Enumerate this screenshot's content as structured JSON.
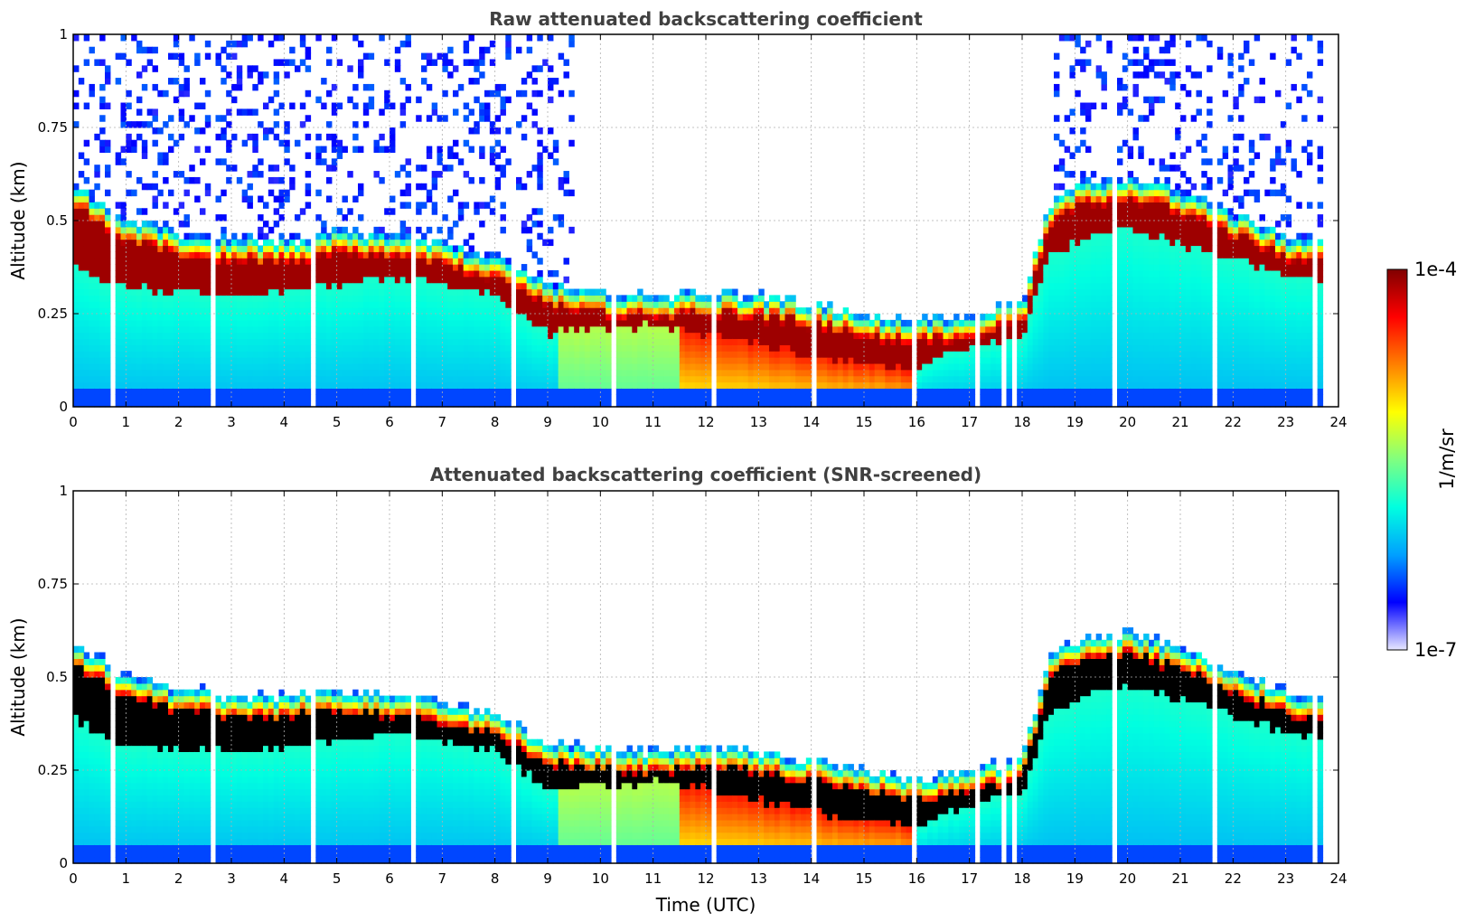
{
  "chart_data": [
    {
      "type": "heatmap",
      "title": "Raw attenuated backscattering coefficient",
      "xlabel": "",
      "ylabel": "Altitude (km)",
      "xlim": [
        0,
        24
      ],
      "ylim": [
        0,
        1
      ],
      "x_ticks": [
        "0",
        "1",
        "2",
        "3",
        "4",
        "5",
        "6",
        "7",
        "8",
        "9",
        "10",
        "11",
        "12",
        "13",
        "14",
        "15",
        "16",
        "17",
        "18",
        "19",
        "20",
        "21",
        "22",
        "23",
        "24"
      ],
      "y_ticks": [
        "0",
        "0.25",
        "0.5",
        "0.75",
        "1"
      ],
      "grid": true,
      "variant": "raw",
      "layer_top_km": {
        "time_utc": [
          0,
          0.5,
          1,
          2,
          3,
          4,
          5,
          6,
          7,
          8,
          9,
          10,
          11,
          12,
          13,
          14,
          15,
          16,
          17,
          18,
          18.5,
          19,
          20,
          21,
          22,
          23,
          23.7
        ],
        "altitude_km": [
          0.6,
          0.55,
          0.5,
          0.47,
          0.45,
          0.45,
          0.47,
          0.46,
          0.44,
          0.4,
          0.33,
          0.31,
          0.3,
          0.31,
          0.3,
          0.28,
          0.25,
          0.23,
          0.25,
          0.28,
          0.55,
          0.6,
          0.62,
          0.58,
          0.52,
          0.46,
          0.45
        ]
      },
      "layer_bottom_km": {
        "time_utc": [
          0,
          0.5,
          1,
          2,
          3,
          4,
          5,
          6,
          7,
          8,
          9,
          10,
          11,
          12,
          13,
          14,
          15,
          16,
          17,
          18,
          18.5,
          19,
          20,
          21,
          22,
          23,
          23.7
        ],
        "altitude_km": [
          0.4,
          0.34,
          0.32,
          0.31,
          0.3,
          0.31,
          0.33,
          0.35,
          0.33,
          0.3,
          0.2,
          0.21,
          0.22,
          0.2,
          0.17,
          0.14,
          0.12,
          0.1,
          0.16,
          0.18,
          0.4,
          0.44,
          0.48,
          0.44,
          0.4,
          0.35,
          0.34
        ]
      }
    },
    {
      "type": "heatmap",
      "title": "Attenuated backscattering coefficient (SNR-screened)",
      "xlabel": "Time (UTC)",
      "ylabel": "Altitude (km)",
      "xlim": [
        0,
        24
      ],
      "ylim": [
        0,
        1
      ],
      "x_ticks": [
        "0",
        "1",
        "2",
        "3",
        "4",
        "5",
        "6",
        "7",
        "8",
        "9",
        "10",
        "11",
        "12",
        "13",
        "14",
        "15",
        "16",
        "17",
        "18",
        "19",
        "20",
        "21",
        "22",
        "23",
        "24"
      ],
      "y_ticks": [
        "0",
        "0.25",
        "0.5",
        "0.75",
        "1"
      ],
      "grid": true,
      "variant": "screened",
      "layer_top_km": {
        "time_utc": [
          0,
          0.5,
          1,
          2,
          3,
          4,
          5,
          6,
          7,
          8,
          9,
          10,
          11,
          12,
          13,
          14,
          15,
          16,
          17,
          18,
          18.5,
          19,
          20,
          21,
          22,
          23,
          23.7
        ],
        "altitude_km": [
          0.6,
          0.55,
          0.5,
          0.47,
          0.45,
          0.45,
          0.47,
          0.46,
          0.44,
          0.4,
          0.33,
          0.31,
          0.3,
          0.31,
          0.3,
          0.28,
          0.25,
          0.23,
          0.25,
          0.28,
          0.55,
          0.6,
          0.62,
          0.58,
          0.52,
          0.46,
          0.45
        ]
      },
      "layer_bottom_km": {
        "time_utc": [
          0,
          0.5,
          1,
          2,
          3,
          4,
          5,
          6,
          7,
          8,
          9,
          10,
          11,
          12,
          13,
          14,
          15,
          16,
          17,
          18,
          18.5,
          19,
          20,
          21,
          22,
          23,
          23.7
        ],
        "altitude_km": [
          0.4,
          0.34,
          0.32,
          0.31,
          0.3,
          0.31,
          0.33,
          0.35,
          0.33,
          0.3,
          0.2,
          0.21,
          0.22,
          0.2,
          0.17,
          0.14,
          0.12,
          0.1,
          0.16,
          0.18,
          0.4,
          0.44,
          0.48,
          0.44,
          0.4,
          0.35,
          0.34
        ]
      }
    }
  ],
  "colorbar": {
    "label": "1/m/sr",
    "max_label": "1e-4",
    "min_label": "1e-7",
    "range": [
      1e-07,
      0.0001
    ],
    "scale": "log",
    "colors": [
      "#e8e8ff",
      "#0000ff",
      "#00a0ff",
      "#00ffe0",
      "#80ff80",
      "#ffff00",
      "#ff8000",
      "#ff0000",
      "#800000"
    ]
  }
}
